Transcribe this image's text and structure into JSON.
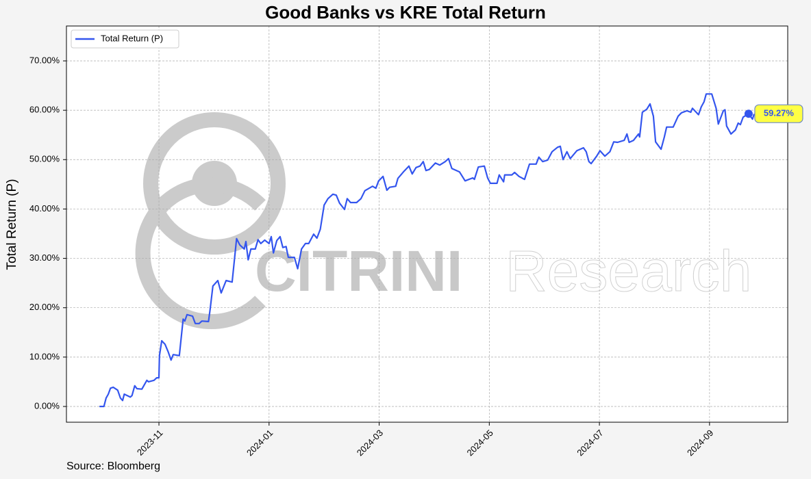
{
  "chart_data": {
    "type": "line",
    "title": "Good Banks vs KRE Total Return",
    "ylabel": "Total Return (P)",
    "source": "Source: Bloomberg",
    "watermark": {
      "brand": "CITRINI",
      "suffix": "Research"
    },
    "legend": "upper left",
    "grid": true,
    "xlim": [
      8.32,
      21.42
    ],
    "xticks": [
      {
        "value": 10,
        "label": "2023-11"
      },
      {
        "value": 12,
        "label": "2024-01"
      },
      {
        "value": 14,
        "label": "2024-03"
      },
      {
        "value": 16,
        "label": "2024-05"
      },
      {
        "value": 18,
        "label": "2024-07"
      },
      {
        "value": 20,
        "label": "2024-09"
      }
    ],
    "ylim": [
      -3.19,
      77.07
    ],
    "yticks": [
      {
        "value": 0,
        "label": "0.00%"
      },
      {
        "value": 10,
        "label": "10.00%"
      },
      {
        "value": 20,
        "label": "20.00%"
      },
      {
        "value": 30,
        "label": "30.00%"
      },
      {
        "value": 40,
        "label": "40.00%"
      },
      {
        "value": 50,
        "label": "50.00%"
      },
      {
        "value": 60,
        "label": "60.00%"
      },
      {
        "value": 70,
        "label": "70.00%"
      }
    ],
    "x": [
      8.92,
      9.0,
      9.04,
      9.08,
      9.12,
      9.17,
      9.25,
      9.3,
      9.34,
      9.37,
      9.48,
      9.51,
      9.56,
      9.6,
      9.69,
      9.78,
      9.81,
      9.91,
      9.96,
      10.0,
      10.01,
      10.05,
      10.11,
      10.17,
      10.22,
      10.26,
      10.37,
      10.44,
      10.47,
      10.51,
      10.61,
      10.66,
      10.73,
      10.78,
      10.9,
      10.93,
      10.98,
      11.07,
      11.13,
      11.22,
      11.33,
      11.41,
      11.47,
      11.55,
      11.58,
      11.62,
      11.67,
      11.75,
      11.8,
      11.85,
      11.92,
      12.0,
      12.04,
      12.08,
      12.14,
      12.2,
      12.25,
      12.31,
      12.35,
      12.46,
      12.52,
      12.59,
      12.66,
      12.72,
      12.81,
      12.87,
      12.93,
      13.0,
      13.07,
      13.16,
      13.22,
      13.28,
      13.37,
      13.42,
      13.48,
      13.59,
      13.67,
      13.74,
      13.88,
      13.94,
      13.99,
      14.07,
      14.14,
      14.19,
      14.3,
      14.34,
      14.44,
      14.54,
      14.6,
      14.67,
      14.74,
      14.8,
      14.85,
      14.91,
      15.02,
      15.1,
      15.2,
      15.26,
      15.32,
      15.46,
      15.56,
      15.7,
      15.73,
      15.8,
      15.91,
      15.97,
      16.02,
      16.14,
      16.18,
      16.26,
      16.28,
      16.41,
      16.46,
      16.54,
      16.64,
      16.73,
      16.85,
      16.9,
      16.97,
      17.06,
      17.14,
      17.24,
      17.29,
      17.34,
      17.41,
      17.47,
      17.59,
      17.71,
      17.76,
      17.81,
      17.85,
      17.95,
      18.01,
      18.1,
      18.19,
      18.26,
      18.33,
      18.45,
      18.5,
      18.54,
      18.62,
      18.71,
      18.73,
      18.78,
      18.86,
      18.92,
      18.98,
      19.02,
      19.12,
      19.18,
      19.22,
      19.34,
      19.43,
      19.49,
      19.59,
      19.66,
      19.69,
      19.8,
      19.85,
      19.9,
      19.94,
      20.04,
      20.12,
      20.16,
      20.25,
      20.28,
      20.31,
      20.39,
      20.47,
      20.52,
      20.56,
      20.61,
      20.71,
      20.78,
      20.81
    ],
    "series": [
      {
        "name": "Total Return (P)",
        "color": "#3355ee",
        "values": [
          0,
          0,
          1.7,
          2.5,
          3.7,
          3.9,
          3.3,
          1.7,
          1.2,
          2.5,
          1.9,
          2.2,
          4.2,
          3.6,
          3.5,
          5.3,
          5.0,
          5.3,
          5.8,
          5.8,
          10.3,
          13.3,
          12.6,
          11.0,
          9.4,
          10.5,
          10.3,
          17.7,
          17.3,
          18.6,
          18.3,
          16.8,
          16.8,
          17.3,
          17.2,
          19.7,
          24.4,
          25.5,
          23.0,
          25.5,
          25.2,
          34.0,
          32.7,
          31.9,
          33.4,
          29.7,
          31.9,
          31.9,
          33.8,
          33.0,
          33.7,
          33.0,
          34.4,
          31.1,
          33.6,
          34.4,
          32.2,
          32.4,
          30.2,
          30.2,
          27.9,
          31.9,
          33.0,
          33.0,
          34.9,
          34.1,
          35.9,
          40.8,
          42.1,
          43.0,
          42.8,
          41.2,
          39.9,
          42.1,
          41.3,
          41.3,
          42.1,
          43.7,
          44.6,
          44.2,
          45.7,
          46.6,
          43.8,
          44.4,
          44.6,
          46.2,
          47.5,
          48.7,
          47.1,
          48.4,
          48.7,
          49.6,
          47.8,
          48.0,
          49.3,
          48.9,
          49.6,
          50.2,
          48.2,
          47.5,
          45.7,
          46.3,
          46.0,
          48.5,
          48.7,
          46.3,
          45.2,
          45.2,
          46.9,
          45.5,
          46.9,
          46.9,
          47.4,
          46.6,
          46.0,
          49.1,
          49.1,
          50.5,
          49.6,
          49.9,
          51.6,
          52.5,
          52.7,
          50.0,
          51.6,
          50.2,
          51.8,
          52.4,
          51.6,
          49.6,
          49.2,
          50.7,
          51.8,
          50.7,
          51.6,
          53.6,
          53.5,
          53.9,
          55.2,
          53.5,
          53.9,
          55.2,
          54.6,
          59.6,
          60.2,
          61.3,
          58.8,
          53.6,
          52.1,
          54.6,
          56.6,
          56.6,
          58.8,
          59.5,
          59.9,
          59.6,
          60.4,
          59.1,
          60.7,
          61.7,
          63.3,
          63.3,
          60.4,
          57.2,
          59.9,
          60.1,
          56.8,
          55.2,
          56.0,
          57.4,
          57.1,
          58.6,
          59.3,
          58.2,
          59.27
        ],
        "value_labels": [
          null,
          null,
          null,
          null,
          null,
          null,
          null,
          null,
          null,
          null,
          null,
          null,
          null,
          null,
          null,
          null,
          null,
          null,
          null,
          null,
          null,
          null,
          null,
          null,
          null,
          null,
          null,
          null,
          null,
          null,
          null,
          null,
          null,
          null,
          null,
          null,
          null,
          null,
          null,
          null,
          null,
          null,
          null,
          null,
          null,
          null,
          null,
          null,
          null,
          null,
          null,
          null,
          null,
          null,
          null,
          null,
          null,
          null,
          null,
          null,
          null,
          null,
          null,
          null,
          null,
          null,
          null,
          null,
          null,
          null,
          null,
          null,
          null,
          null,
          null,
          null,
          null,
          null,
          null,
          null,
          null,
          null,
          null,
          null,
          null,
          null,
          null,
          null,
          null,
          null,
          null,
          null,
          null,
          null,
          null,
          null,
          null,
          null,
          null,
          null,
          null,
          null,
          null,
          null,
          null,
          null,
          null,
          null,
          null,
          null,
          null,
          null,
          null,
          null,
          null,
          null,
          null,
          null,
          null,
          null,
          null,
          null,
          null,
          null,
          null,
          null,
          null,
          null,
          null,
          null,
          null,
          null,
          null,
          null,
          null,
          null,
          null,
          null,
          null,
          null,
          null,
          null,
          null,
          null,
          null,
          null,
          null,
          null,
          null,
          null,
          null,
          null,
          null,
          null,
          null,
          null,
          null,
          null,
          null,
          null,
          null,
          null,
          null,
          null,
          null,
          null,
          null,
          null,
          null,
          null,
          null,
          null,
          "59.27%"
        ]
      }
    ]
  }
}
